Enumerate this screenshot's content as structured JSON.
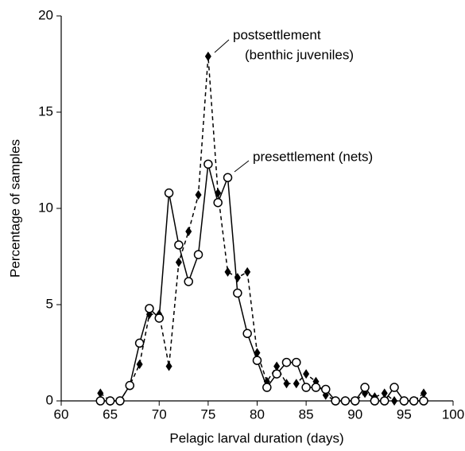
{
  "chart_data": {
    "type": "line",
    "xlabel": "Pelagic larval duration (days)",
    "ylabel": "Percentage of samples",
    "x": [
      64,
      65,
      66,
      67,
      68,
      69,
      70,
      71,
      72,
      73,
      74,
      75,
      76,
      77,
      78,
      79,
      80,
      81,
      82,
      83,
      84,
      85,
      86,
      87,
      88,
      89,
      90,
      91,
      92,
      93,
      94,
      95,
      96,
      97
    ],
    "series": [
      {
        "marker": "diamond",
        "dashed": true,
        "color": "#000000",
        "values": [
          0.4,
          0,
          0,
          0.8,
          1.9,
          4.5,
          4.5,
          1.8,
          7.2,
          8.8,
          10.7,
          17.9,
          10.8,
          6.7,
          6.4,
          6.7,
          2.5,
          1.0,
          1.8,
          0.9,
          0.9,
          1.4,
          1.0,
          0.3,
          0,
          0,
          0,
          0.4,
          0.2,
          0.4,
          0,
          0,
          0,
          0.4
        ]
      },
      {
        "marker": "circle",
        "dashed": false,
        "color": "#000000",
        "values": [
          0,
          0,
          0,
          0.8,
          3.0,
          4.8,
          4.3,
          10.8,
          8.1,
          6.2,
          7.6,
          12.3,
          10.3,
          11.6,
          5.6,
          3.5,
          2.1,
          0.7,
          1.4,
          2.0,
          2.0,
          0.7,
          0.7,
          0.6,
          0,
          0,
          0,
          0.7,
          0,
          0,
          0.7,
          0,
          0,
          0
        ]
      }
    ],
    "annotations": [
      {
        "series": 0,
        "lines": [
          "postsettlement",
          "(benthic juveniles)"
        ]
      },
      {
        "series": 1,
        "lines": [
          "presettlement (nets)"
        ]
      }
    ],
    "xlim": [
      60,
      100
    ],
    "xticks": [
      60,
      65,
      70,
      75,
      80,
      85,
      90,
      95,
      100
    ],
    "ylim": [
      0,
      20
    ],
    "yticks": [
      0,
      5,
      10,
      15,
      20
    ]
  }
}
